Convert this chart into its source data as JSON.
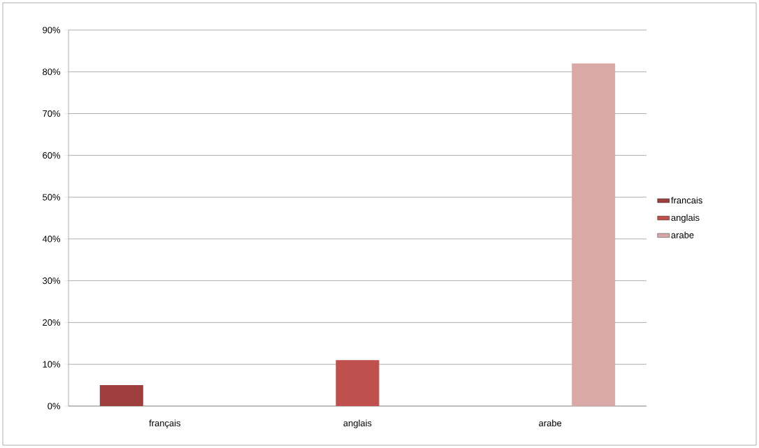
{
  "chart_data": {
    "type": "bar",
    "categories": [
      "français",
      "anglais",
      "arabe"
    ],
    "series": [
      {
        "name": "francais",
        "color": "#9e3f3e",
        "values": [
          5,
          null,
          null
        ]
      },
      {
        "name": "anglais",
        "color": "#c0504d",
        "values": [
          null,
          11,
          null
        ]
      },
      {
        "name": "arabe",
        "color": "#d9a9a8",
        "values": [
          null,
          null,
          82
        ]
      }
    ],
    "ylim": [
      0,
      90
    ],
    "yticks": [
      {
        "value": 0,
        "label": "0%"
      },
      {
        "value": 10,
        "label": "10%"
      },
      {
        "value": 20,
        "label": "20%"
      },
      {
        "value": 30,
        "label": "30%"
      },
      {
        "value": 40,
        "label": "40%"
      },
      {
        "value": 50,
        "label": "50%"
      },
      {
        "value": 60,
        "label": "60%"
      },
      {
        "value": 70,
        "label": "70%"
      },
      {
        "value": 80,
        "label": "80%"
      },
      {
        "value": 90,
        "label": "90%"
      }
    ],
    "grid": "y",
    "legend": "right"
  }
}
